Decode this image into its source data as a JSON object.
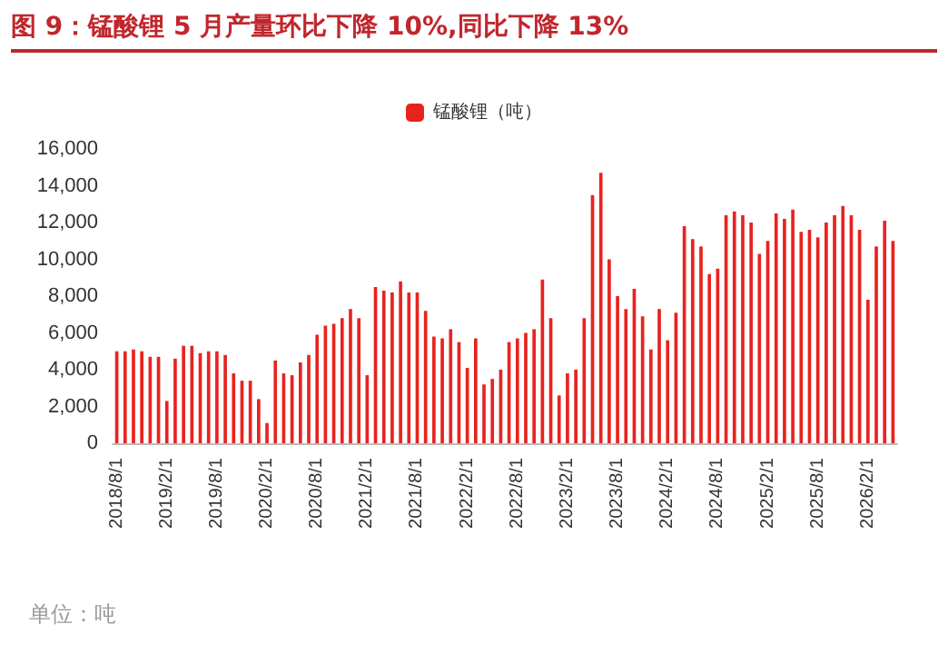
{
  "chart_data": {
    "type": "bar",
    "title": "图 9：锰酸锂 5 月产量环比下降 10%,同比下降 13%",
    "categories": [
      "2018/8/1",
      null,
      null,
      null,
      null,
      null,
      "2019/2/1",
      null,
      null,
      null,
      null,
      null,
      "2019/8/1",
      null,
      null,
      null,
      null,
      null,
      "2020/2/1",
      null,
      null,
      null,
      null,
      null,
      "2020/8/1",
      null,
      null,
      null,
      null,
      null,
      "2021/2/1",
      null,
      null,
      null,
      null,
      null,
      "2021/8/1",
      null,
      null,
      null,
      null,
      null,
      "2022/2/1",
      null,
      null,
      null,
      null,
      null,
      "2022/8/1",
      null,
      null,
      null,
      null,
      null,
      "2023/2/1",
      null,
      null,
      null,
      null,
      null,
      "2023/8/1",
      null,
      null,
      null,
      null,
      null,
      "2024/2/1",
      null,
      null,
      null,
      null,
      null,
      "2024/8/1",
      null,
      null,
      null,
      null,
      null,
      "2025/2/1",
      null,
      null,
      null,
      null,
      null,
      "2025/8/1",
      null,
      null,
      null,
      null,
      null,
      "2026/2/1",
      null,
      null,
      null
    ],
    "series": [
      {
        "name": "锰酸锂（吨）",
        "color": "#e8231f",
        "values": [
          5000,
          5000,
          5100,
          5000,
          4700,
          4700,
          2300,
          4600,
          5300,
          5300,
          4900,
          5000,
          5000,
          4800,
          3800,
          3400,
          3400,
          2400,
          1100,
          4500,
          3800,
          3700,
          4400,
          4800,
          5900,
          6400,
          6500,
          6800,
          7300,
          6800,
          3700,
          8500,
          8300,
          8200,
          8800,
          8200,
          8200,
          7200,
          5800,
          5700,
          6200,
          5500,
          4100,
          5700,
          3200,
          3500,
          4000,
          5500,
          5700,
          6000,
          6200,
          8900,
          6800,
          2600,
          3800,
          4000,
          6800,
          13500,
          14700,
          10000,
          8000,
          7300,
          8400,
          6900,
          5100,
          7300,
          5600,
          7100,
          11800,
          11100,
          10700,
          9200,
          9500,
          12400,
          12600,
          12400,
          12000,
          10300,
          11000,
          12500,
          12200,
          12700,
          11500,
          11600,
          11200,
          12000,
          12400,
          12900,
          12400,
          11600,
          7800,
          10700,
          12100,
          11000
        ]
      }
    ],
    "ylim": [
      0,
      16000
    ],
    "yticks": [
      0,
      {
        "value": 2000,
        "label": "2,000"
      },
      {
        "value": 4000,
        "label": "4,000"
      },
      {
        "value": 6000,
        "label": "6,000"
      },
      {
        "value": 8000,
        "label": "8,000"
      },
      {
        "value": 10000,
        "label": "10,000"
      },
      {
        "value": 12000,
        "label": "12,000"
      },
      {
        "value": 14000,
        "label": "14,000"
      },
      {
        "value": 16000,
        "label": "16,000"
      }
    ],
    "legend": "top",
    "annotations": [
      "单位：吨"
    ]
  }
}
